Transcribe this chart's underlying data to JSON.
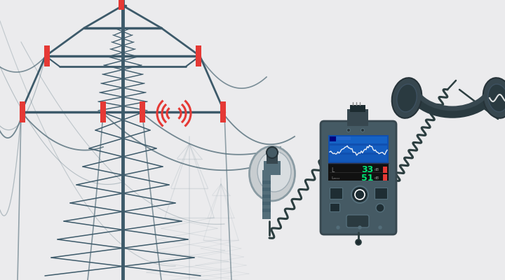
{
  "bg_color": "#ebebed",
  "pylon_color": "#3d5a6a",
  "pylon_light_color": "#9eadb5",
  "red_color": "#e53935",
  "wire_color": "#546e7a",
  "device_dark": "#37474f",
  "device_mid": "#455a64",
  "device_light": "#546e7a",
  "screen_blue": "#1565c0",
  "screen_bg": "#263238",
  "headphone_dark": "#37474f",
  "headphone_mid": "#455a64",
  "sensor_color": "#546e7a",
  "white": "#ffffff",
  "green_text": "#00e676",
  "cable_color": "#2c3e40",
  "dish_color": "#c8cdd0",
  "dish_edge": "#8a9ba3"
}
